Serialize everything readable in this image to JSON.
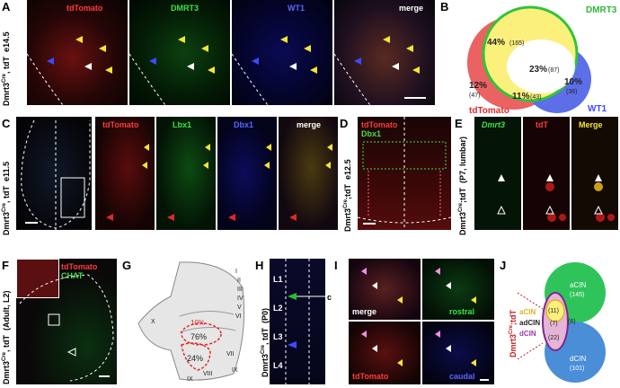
{
  "panels": {
    "a": {
      "label": "A",
      "channels": [
        "tdTomato",
        "DMRT3",
        "WT1",
        "merge"
      ],
      "side": "Dmrt3",
      "side_sup": "Cre",
      "side_post": ", tdT",
      "stage": "e14.5"
    },
    "b": {
      "label": "B",
      "dmrt3": "DMRT3",
      "tdtomato": "tdTomato",
      "wt1": "WT1",
      "r1": "44%",
      "r1n": "(165)",
      "r2": "23%",
      "r2n": "(87)",
      "r3": "12%",
      "r3n": "(47)",
      "r4": "11%",
      "r4n": "(43)",
      "r5": "10%",
      "r5n": "(36)"
    },
    "c": {
      "label": "C",
      "channels": [
        "tdTomato",
        "Lbx1",
        "Dbx1",
        "merge"
      ],
      "side": "Dmrt3",
      "side_sup": "Cre",
      "side_post": ", tdT",
      "stage": "e11.5"
    },
    "d": {
      "label": "D",
      "ch1": "tdTomato",
      "ch2": "Dbx1",
      "side": "Dmrt3",
      "side_sup": "Cre",
      "side_post": ";tdT",
      "stage": "e12.5"
    },
    "e": {
      "label": "E",
      "channels": [
        "Dmrt3",
        "tdT",
        "Merge"
      ],
      "side": "Dmrt3",
      "side_sup": "Cre",
      "side_post": ";tdT",
      "stage": "(P7, lumbar)"
    },
    "f": {
      "label": "F",
      "ch1": "tdTomato",
      "ch2": "CHAT",
      "side": "Dmrt3",
      "side_sup": "Cre",
      "side_post": ", tdT",
      "stage": "(Adult, L2)"
    },
    "g": {
      "label": "G",
      "laminae": [
        "I",
        "II",
        "III",
        "IV",
        "V",
        "VI",
        "VII",
        "VIII",
        "IX",
        "IX",
        "X"
      ],
      "p1": "10%",
      "p2": "76%",
      "p3": "24%"
    },
    "h": {
      "label": "H",
      "levels": [
        "L1",
        "L2",
        "L3",
        "L4"
      ],
      "marker": "c",
      "side": "Dmrt3",
      "side_sup": "Cre",
      "side_post": ", tdT",
      "stage": "(P0)"
    },
    "i": {
      "label": "I",
      "channels": [
        "merge",
        "rostral",
        "tdTomato",
        "caudal"
      ]
    },
    "j": {
      "label": "J",
      "acin": "aCIN",
      "acin_n": "(145)",
      "dcin": "dCIN",
      "dcin_n": "(101)",
      "n11": "(11)",
      "n7": "(7)",
      "n22": "(22)",
      "n6": "(6)",
      "leg1": "aCIN",
      "leg2": "adCIN",
      "leg3": "dCIN",
      "side": "Dmrt3",
      "side_sup": "Cre",
      "side_post": ";tdT"
    }
  },
  "colors": {
    "red": "#e02828",
    "green": "#22c22a",
    "blue": "#3b4bff",
    "yellow": "#f5e62e"
  }
}
